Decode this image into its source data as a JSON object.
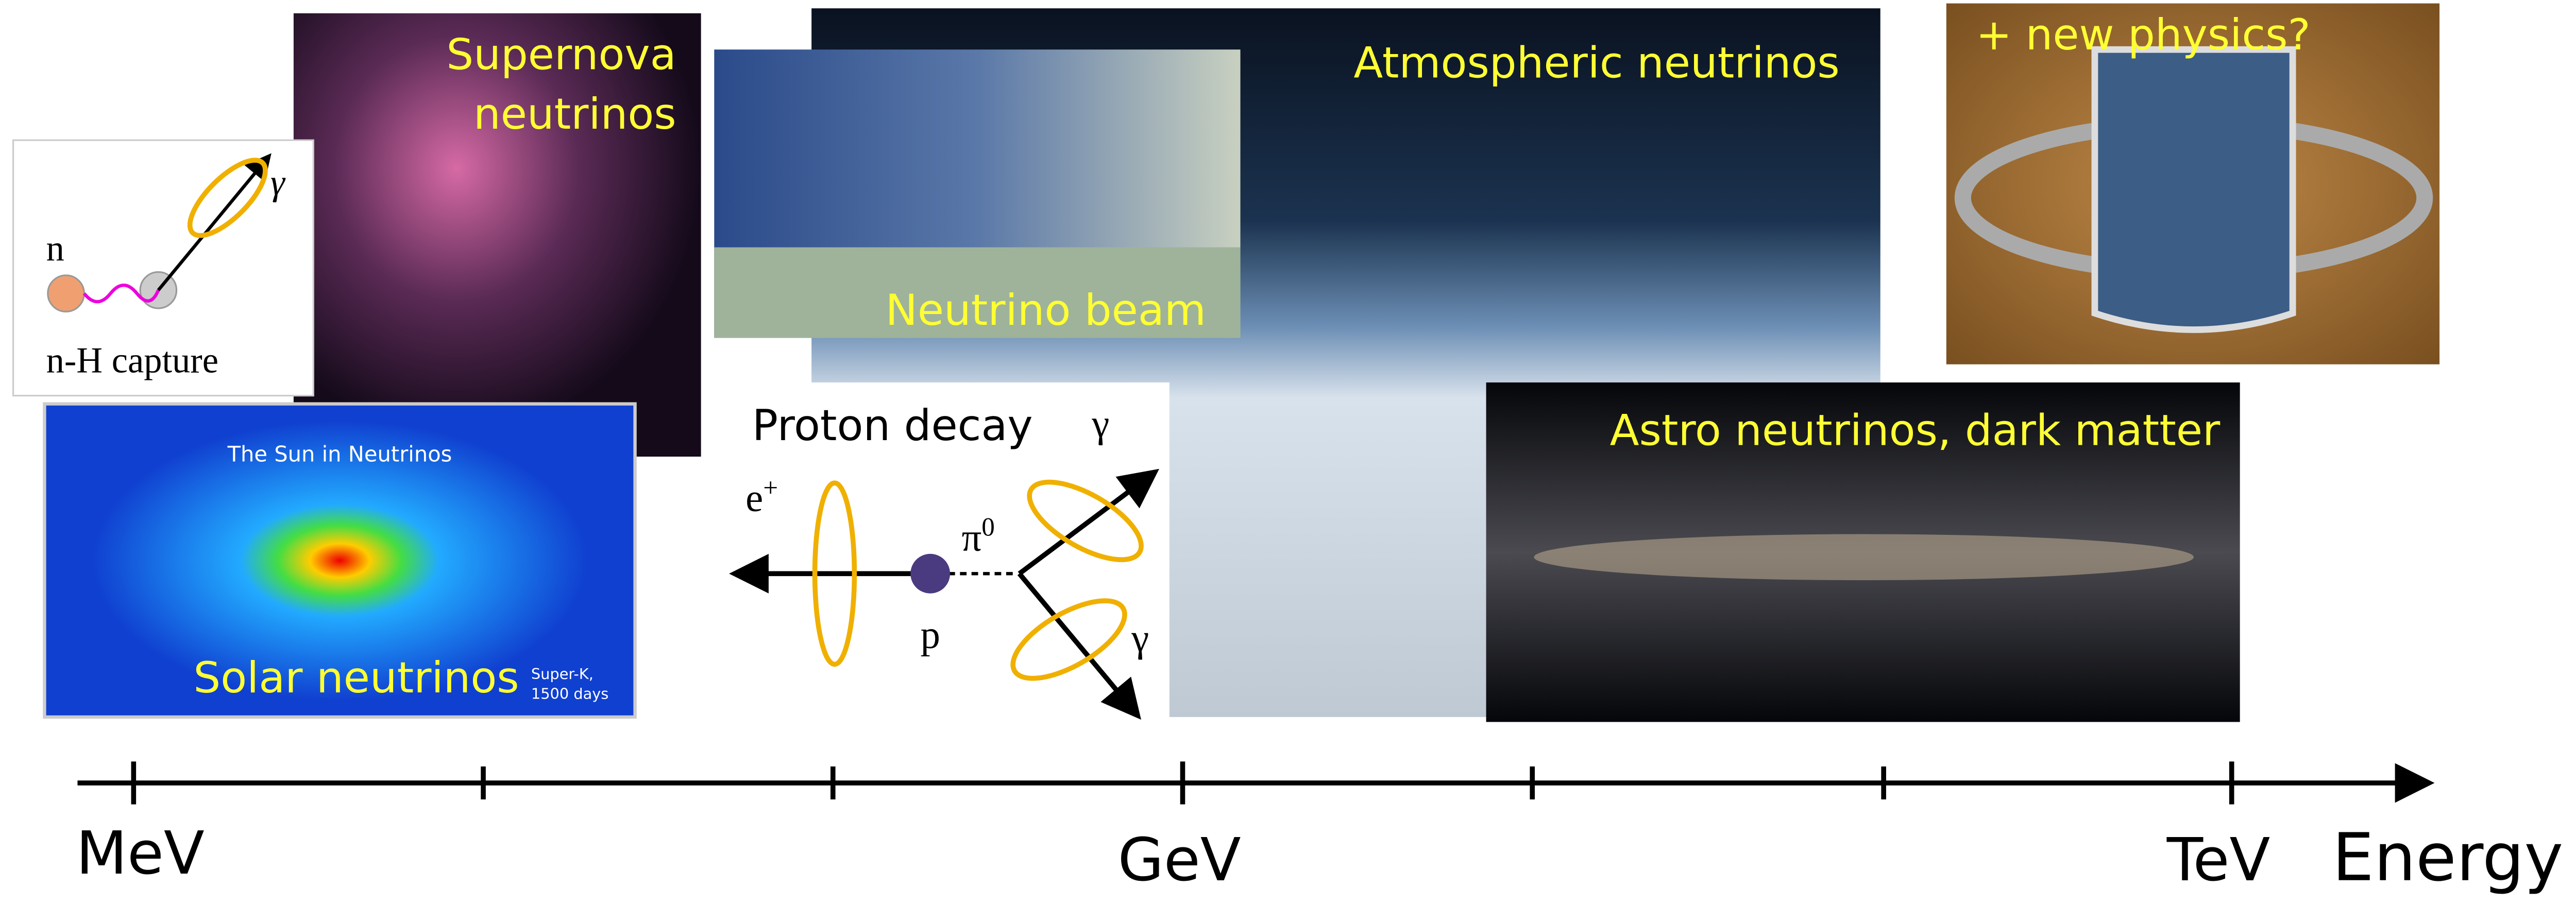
{
  "atmospheric": {
    "label": "Atmospheric neutrinos"
  },
  "supernova": {
    "label": [
      "Supernova",
      "neutrinos"
    ]
  },
  "new_physics": {
    "label": "+ new physics?"
  },
  "capture": {
    "n": "n",
    "gamma": "γ",
    "label": "n-H capture"
  },
  "beam": {
    "label": "Neutrino beam"
  },
  "solar": {
    "map_title": "The Sun in Neutrinos",
    "label": "Solar neutrinos",
    "credit": [
      "Super-K,",
      "1500 days"
    ]
  },
  "proton_decay": {
    "title": "Proton decay",
    "gamma_top": "γ",
    "positron": {
      "base": "e",
      "sup": "+"
    },
    "pion": {
      "base": "π",
      "sup": "0"
    },
    "proton": "p",
    "gamma_bottom": "γ"
  },
  "astro": {
    "label": "Astro neutrinos, dark matter"
  },
  "axis": {
    "labels": [
      "MeV",
      "GeV",
      "TeV"
    ],
    "title": "Energy"
  }
}
